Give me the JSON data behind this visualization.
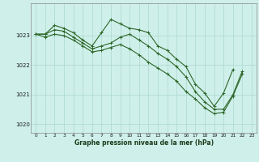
{
  "xlabel": "Graphe pression niveau de la mer (hPa)",
  "bg_color": "#cff0ea",
  "grid_color": "#aad9ce",
  "line_color": "#2d6628",
  "xlim": [
    -0.5,
    23.5
  ],
  "ylim": [
    1019.7,
    1024.1
  ],
  "yticks": [
    1020,
    1021,
    1022,
    1023
  ],
  "xticks": [
    0,
    1,
    2,
    3,
    4,
    5,
    6,
    7,
    8,
    9,
    10,
    11,
    12,
    13,
    14,
    15,
    16,
    17,
    18,
    19,
    20,
    21,
    22,
    23
  ],
  "line1": [
    1023.05,
    1023.05,
    1023.35,
    1023.25,
    1023.1,
    1022.85,
    1022.65,
    1023.1,
    1023.55,
    1023.4,
    1023.25,
    1023.2,
    1023.1,
    1022.65,
    1022.5,
    1022.2,
    1021.95,
    1021.35,
    1021.05,
    1020.6,
    1021.05,
    1021.85,
    null,
    null
  ],
  "line2": [
    1023.05,
    1023.05,
    1023.2,
    1023.15,
    1022.95,
    1022.75,
    1022.55,
    1022.65,
    1022.75,
    1022.95,
    1023.05,
    1022.85,
    1022.65,
    1022.4,
    1022.2,
    1021.95,
    1021.6,
    1021.1,
    1020.75,
    1020.5,
    1020.5,
    1021.0,
    1021.8,
    null
  ],
  "line3": [
    1023.05,
    1022.95,
    1023.05,
    1023.0,
    1022.85,
    1022.65,
    1022.45,
    1022.5,
    1022.6,
    1022.7,
    1022.55,
    1022.35,
    1022.1,
    1021.9,
    1021.7,
    1021.45,
    1021.1,
    1020.85,
    1020.55,
    1020.35,
    1020.4,
    1020.95,
    1021.7,
    null
  ]
}
